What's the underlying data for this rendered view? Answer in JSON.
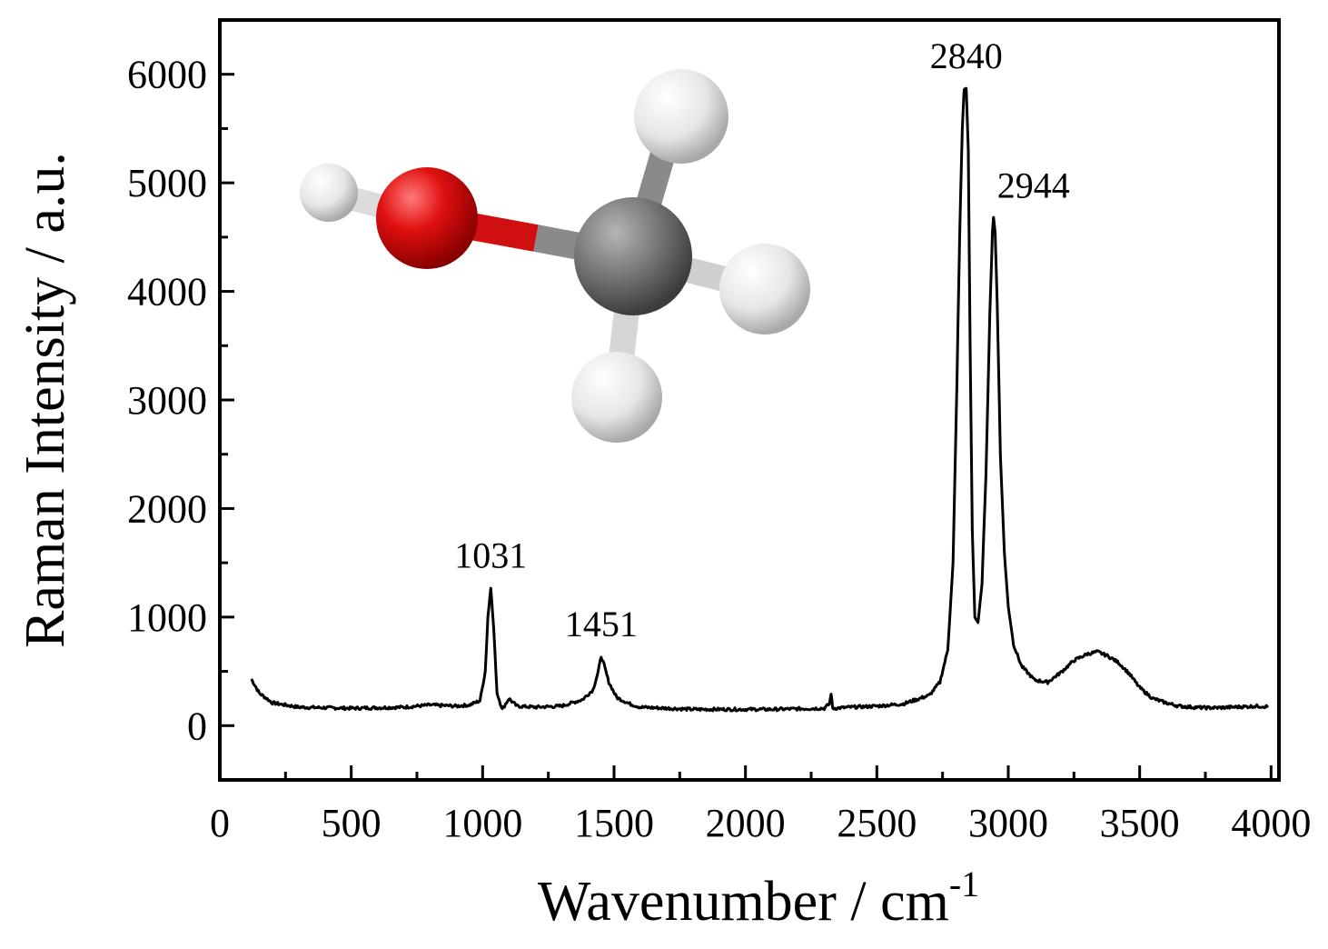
{
  "chart_data": {
    "type": "line",
    "title": "",
    "xlabel": "Wavenumber / cm",
    "xlabel_sup": "-1",
    "ylabel": "Raman Intensity / a.u.",
    "xlim": [
      0,
      4030
    ],
    "ylim": [
      -500,
      6500
    ],
    "xticks": [
      0,
      500,
      1000,
      1500,
      2000,
      2500,
      3000,
      3500,
      4000
    ],
    "yticks": [
      0,
      1000,
      2000,
      3000,
      4000,
      5000,
      6000
    ],
    "grid": false,
    "series": [
      {
        "color": "#000000",
        "x": [
          120,
          150,
          200,
          300,
          400,
          500,
          600,
          700,
          800,
          900,
          950,
          990,
          1010,
          1020,
          1031,
          1042,
          1055,
          1075,
          1100,
          1130,
          1200,
          1300,
          1380,
          1420,
          1440,
          1451,
          1462,
          1480,
          1510,
          1560,
          1600,
          1700,
          1800,
          1900,
          2000,
          2100,
          2200,
          2300,
          2320,
          2326,
          2332,
          2340,
          2400,
          2500,
          2600,
          2650,
          2700,
          2740,
          2770,
          2790,
          2805,
          2815,
          2825,
          2832,
          2840,
          2848,
          2855,
          2863,
          2873,
          2885,
          2900,
          2915,
          2930,
          2940,
          2944,
          2950,
          2958,
          2970,
          2985,
          3000,
          3020,
          3050,
          3100,
          3150,
          3200,
          3250,
          3300,
          3340,
          3380,
          3420,
          3460,
          3500,
          3550,
          3600,
          3650,
          3700,
          3750,
          3800,
          3850,
          3900,
          3950,
          3990
        ],
        "y": [
          430,
          300,
          210,
          170,
          165,
          160,
          165,
          170,
          190,
          180,
          190,
          230,
          500,
          1000,
          1270,
          900,
          300,
          150,
          250,
          180,
          170,
          180,
          240,
          330,
          500,
          640,
          560,
          400,
          260,
          200,
          170,
          160,
          150,
          150,
          150,
          150,
          155,
          160,
          200,
          300,
          160,
          160,
          170,
          180,
          200,
          240,
          280,
          400,
          700,
          1500,
          3200,
          4500,
          5500,
          5860,
          5870,
          5300,
          3500,
          1800,
          1000,
          950,
          1300,
          2300,
          3800,
          4550,
          4680,
          4550,
          3900,
          2500,
          1600,
          1100,
          750,
          550,
          420,
          400,
          490,
          600,
          660,
          680,
          640,
          580,
          480,
          350,
          250,
          210,
          180,
          170,
          165,
          165,
          170,
          175,
          180,
          175
        ]
      }
    ],
    "annotations": [
      {
        "text": "1031",
        "x": 1031,
        "y": 1270
      },
      {
        "text": "1451",
        "x": 1451,
        "y": 640
      },
      {
        "text": "2840",
        "x": 2840,
        "y": 5870
      },
      {
        "text": "2944",
        "x": 2944,
        "y": 4680
      }
    ],
    "inset_image": {
      "depicts": "methanol ball-and-stick molecule",
      "oxygen_color": "#e01010",
      "carbon_color": "#7a7a7a",
      "hydrogen_color": "#eeeeee"
    }
  }
}
